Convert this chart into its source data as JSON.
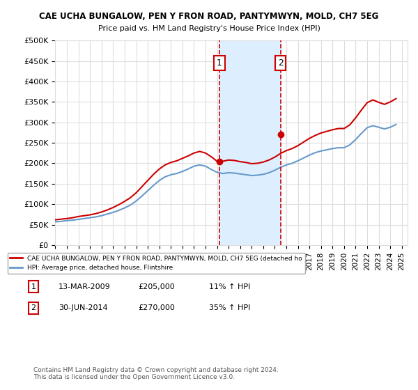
{
  "title_line1": "CAE UCHA BUNGALOW, PEN Y FRON ROAD, PANTYMWYN, MOLD, CH7 5EG",
  "title_line2": "Price paid vs. HM Land Registry's House Price Index (HPI)",
  "ylabel_ticks": [
    "£0",
    "£50K",
    "£100K",
    "£150K",
    "£200K",
    "£250K",
    "£300K",
    "£350K",
    "£400K",
    "£450K",
    "£500K"
  ],
  "ytick_values": [
    0,
    50000,
    100000,
    150000,
    200000,
    250000,
    300000,
    350000,
    400000,
    450000,
    500000
  ],
  "xlim_start": 1995.0,
  "xlim_end": 2025.5,
  "ylim": [
    0,
    500000
  ],
  "sale1_x": 2009.2,
  "sale1_y": 205000,
  "sale1_label": "1",
  "sale1_date": "13-MAR-2009",
  "sale1_price": "£205,000",
  "sale1_hpi": "11% ↑ HPI",
  "sale2_x": 2014.5,
  "sale2_y": 270000,
  "sale2_label": "2",
  "sale2_date": "30-JUN-2014",
  "sale2_price": "£270,000",
  "sale2_hpi": "35% ↑ HPI",
  "red_line_color": "#cc0000",
  "blue_line_color": "#6699cc",
  "shaded_region_color": "#ddeeff",
  "grid_color": "#dddddd",
  "background_color": "#ffffff",
  "legend_text_red": "CAE UCHA BUNGALOW, PEN Y FRON ROAD, PANTYMWYN, MOLD, CH7 5EG (detached ho",
  "legend_text_blue": "HPI: Average price, detached house, Flintshire",
  "footnote": "Contains HM Land Registry data © Crown copyright and database right 2024.\nThis data is licensed under the Open Government Licence v3.0.",
  "hpi_years": [
    1995,
    1995.5,
    1996,
    1996.5,
    1997,
    1997.5,
    1998,
    1998.5,
    1999,
    1999.5,
    2000,
    2000.5,
    2001,
    2001.5,
    2002,
    2002.5,
    2003,
    2003.5,
    2004,
    2004.5,
    2005,
    2005.5,
    2006,
    2006.5,
    2007,
    2007.5,
    2008,
    2008.5,
    2009,
    2009.5,
    2010,
    2010.5,
    2011,
    2011.5,
    2012,
    2012.5,
    2013,
    2013.5,
    2014,
    2014.5,
    2015,
    2015.5,
    2016,
    2016.5,
    2017,
    2017.5,
    2018,
    2018.5,
    2019,
    2019.5,
    2020,
    2020.5,
    2021,
    2021.5,
    2022,
    2022.5,
    2023,
    2023.5,
    2024,
    2024.5
  ],
  "hpi_values": [
    57000,
    58000,
    60000,
    61000,
    63000,
    65000,
    67000,
    69000,
    72000,
    76000,
    80000,
    85000,
    91000,
    98000,
    108000,
    120000,
    133000,
    146000,
    158000,
    167000,
    172000,
    175000,
    180000,
    186000,
    193000,
    196000,
    193000,
    185000,
    178000,
    175000,
    177000,
    176000,
    174000,
    172000,
    170000,
    171000,
    173000,
    177000,
    183000,
    190000,
    196000,
    200000,
    206000,
    213000,
    220000,
    226000,
    230000,
    233000,
    236000,
    238000,
    238000,
    245000,
    258000,
    273000,
    287000,
    292000,
    288000,
    284000,
    288000,
    295000
  ],
  "red_years": [
    1995,
    1995.5,
    1996,
    1996.5,
    1997,
    1997.5,
    1998,
    1998.5,
    1999,
    1999.5,
    2000,
    2000.5,
    2001,
    2001.5,
    2002,
    2002.5,
    2003,
    2003.5,
    2004,
    2004.5,
    2005,
    2005.5,
    2006,
    2006.5,
    2007,
    2007.5,
    2008,
    2008.5,
    2009,
    2009.5,
    2010,
    2010.5,
    2011,
    2011.5,
    2012,
    2012.5,
    2013,
    2013.5,
    2014,
    2014.5,
    2015,
    2015.5,
    2016,
    2016.5,
    2017,
    2017.5,
    2018,
    2018.5,
    2019,
    2019.5,
    2020,
    2020.5,
    2021,
    2021.5,
    2022,
    2022.5,
    2023,
    2023.5,
    2024,
    2024.5
  ],
  "red_values": [
    62000,
    63500,
    65000,
    67000,
    70000,
    72000,
    74000,
    77000,
    81000,
    86000,
    92000,
    99000,
    107000,
    116000,
    128000,
    143000,
    158000,
    173000,
    186000,
    196000,
    202000,
    206000,
    212000,
    218000,
    225000,
    229000,
    225000,
    216000,
    205000,
    205000,
    208000,
    207000,
    204000,
    202000,
    199000,
    200000,
    203000,
    208000,
    215000,
    224000,
    231000,
    236000,
    243000,
    252000,
    261000,
    268000,
    274000,
    278000,
    282000,
    285000,
    285000,
    294000,
    311000,
    330000,
    348000,
    355000,
    349000,
    344000,
    350000,
    358000
  ]
}
